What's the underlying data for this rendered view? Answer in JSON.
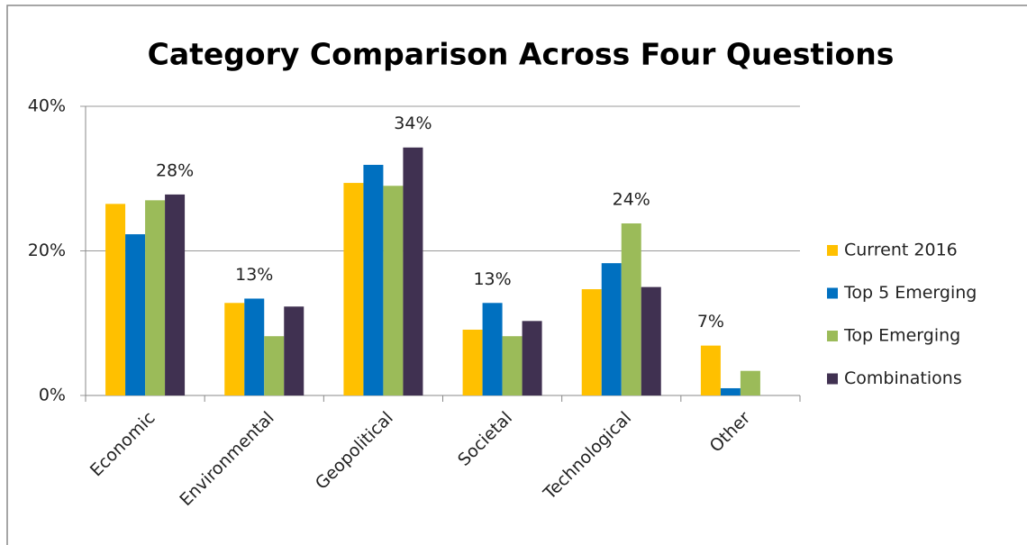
{
  "chart_data": {
    "type": "bar",
    "title": "Category Comparison Across Four Questions",
    "categories": [
      "Economic",
      "Environmental",
      "Geopolitical",
      "Societal",
      "Technological",
      "Other"
    ],
    "series": [
      {
        "name": "Current 2016",
        "color": "#FFC000",
        "values": [
          26.5,
          12.8,
          29.4,
          9.1,
          14.7,
          6.9
        ],
        "value_labels": [
          null,
          null,
          null,
          null,
          null,
          "7%"
        ]
      },
      {
        "name": "Top 5 Emerging",
        "color": "#0070C0",
        "values": [
          22.3,
          13.4,
          31.9,
          12.8,
          18.3,
          1.0
        ],
        "value_labels": [
          null,
          "13%",
          null,
          "13%",
          null,
          null
        ]
      },
      {
        "name": "Top Emerging",
        "color": "#9BBB59",
        "values": [
          27.0,
          8.2,
          29.0,
          8.2,
          23.8,
          3.4
        ],
        "value_labels": [
          null,
          null,
          null,
          null,
          "24%",
          null
        ]
      },
      {
        "name": "Combinations",
        "color": "#403151",
        "values": [
          27.8,
          12.3,
          34.3,
          10.3,
          15.0,
          0
        ],
        "value_labels": [
          "28%",
          null,
          "34%",
          null,
          null,
          null
        ]
      }
    ],
    "ylim": [
      0,
      40
    ],
    "yticks": [
      {
        "value": 0,
        "label": "0%"
      },
      {
        "value": 20,
        "label": "20%"
      },
      {
        "value": 40,
        "label": "40%"
      }
    ],
    "grid": true,
    "legend": "right"
  }
}
